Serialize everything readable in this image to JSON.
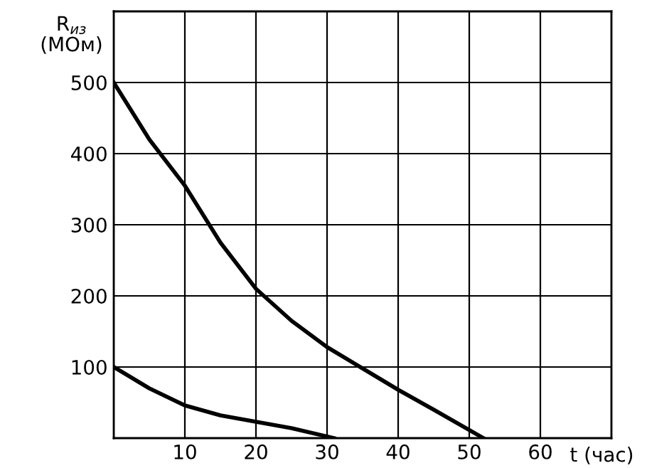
{
  "chart_data": {
    "type": "line",
    "xlabel": "t (час)",
    "ylabel": "R$_{из}$\n(МОм)",
    "series": [
      {
        "color": "#000000",
        "x": [
          0,
          5,
          10,
          15,
          20,
          25,
          30,
          35,
          40,
          45,
          52
        ],
        "values": [
          500,
          420,
          355,
          275,
          210,
          165,
          128,
          98,
          68,
          40,
          0
        ]
      },
      {
        "color": "#000000",
        "x": [
          0,
          5,
          10,
          15,
          20,
          25,
          31
        ],
        "values": [
          100,
          70,
          46,
          32,
          23,
          14,
          0
        ]
      }
    ],
    "xlim": [
      0,
      70
    ],
    "ylim": [
      0,
      600
    ],
    "xticks": [
      {
        "value": 0,
        "label": null
      },
      10,
      20,
      30,
      40,
      50,
      60,
      {
        "value": 70,
        "label": null
      }
    ],
    "yticks": [
      {
        "value": 0,
        "label": null
      },
      100,
      200,
      300,
      400,
      500,
      {
        "value": 600,
        "label": null
      }
    ],
    "grid": true,
    "marker": "none",
    "line_style": "solid"
  }
}
